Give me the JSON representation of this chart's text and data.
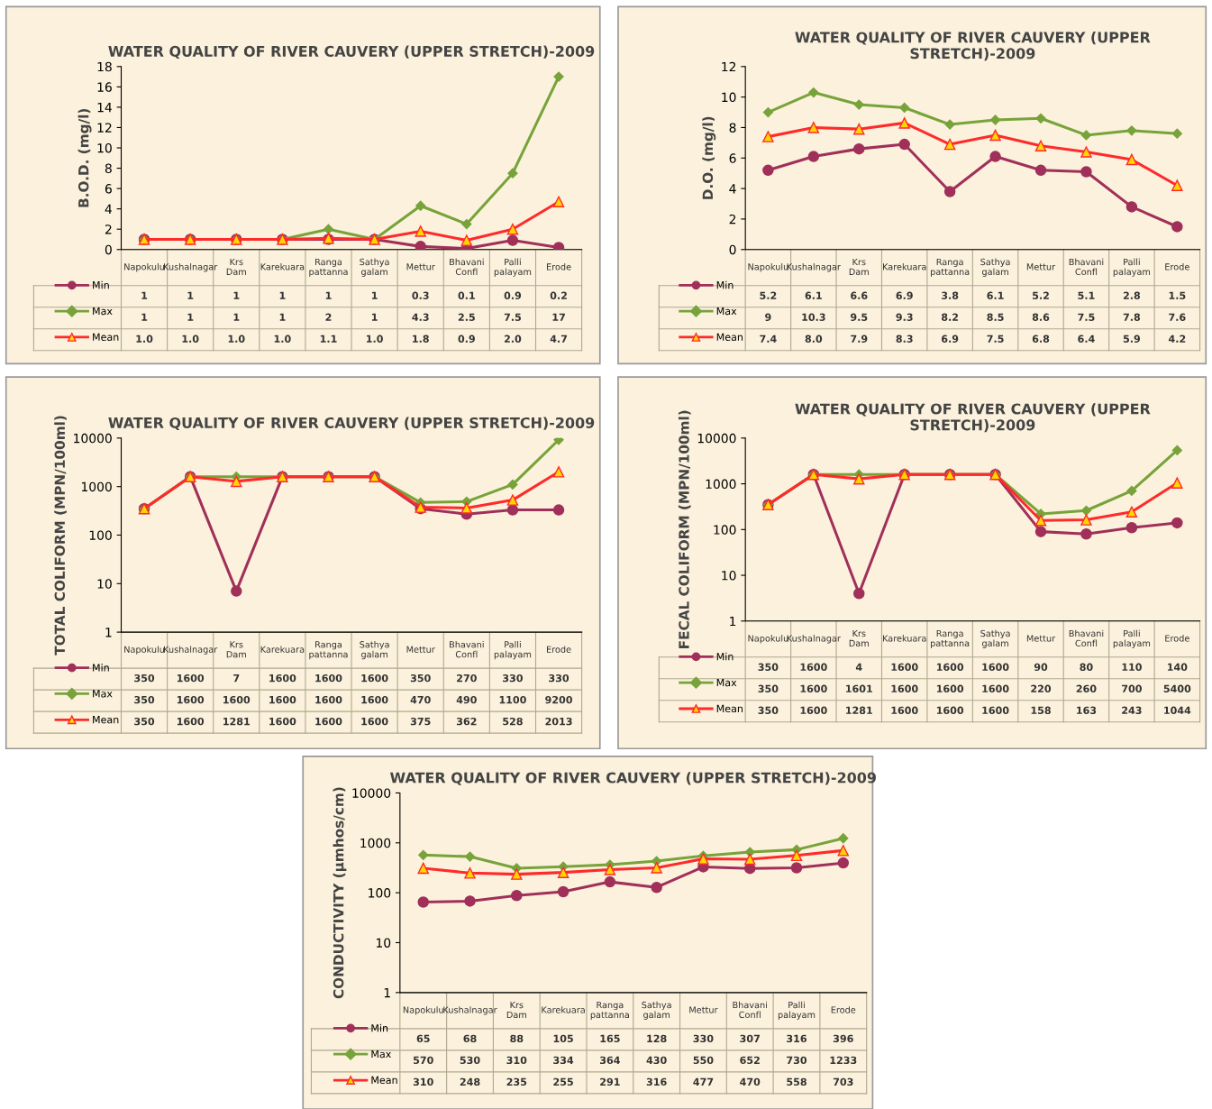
{
  "chart_data": [
    {
      "type": "line",
      "title": "WATER QUALITY OF RIVER CAUVERY (UPPER STRETCH)-2009",
      "ylabel": "B.O.D. (mg/l)",
      "categories": [
        "Napokulu",
        "Kushalnagar",
        "Krs Dam",
        "Karekuara",
        "Ranga pattanna",
        "Sathya galam",
        "Mettur",
        "Bhavani Confl",
        "Palli palayam",
        "Erode"
      ],
      "ylim": [
        0,
        18
      ],
      "yticks": [
        0,
        2,
        4,
        6,
        8,
        10,
        12,
        14,
        16,
        18
      ],
      "grid": false,
      "legend": "bottom left",
      "tick_labels": "y",
      "data_labels": true,
      "series": [
        {
          "name": "Min",
          "color": "#a0305a",
          "marker": "circle",
          "values": [
            1,
            1,
            1,
            1,
            1,
            1,
            0.3,
            0.1,
            0.9,
            0.2
          ],
          "value_labels": [
            "1",
            "1",
            "1",
            "1",
            "1",
            "1",
            "0.3",
            "0.1",
            "0.9",
            "0.2"
          ]
        },
        {
          "name": "Max",
          "color": "#77a33a",
          "marker": "diamond",
          "values": [
            1,
            1,
            1,
            1,
            2,
            1,
            4.3,
            2.5,
            7.5,
            17
          ],
          "value_labels": [
            "1",
            "1",
            "1",
            "1",
            "2",
            "1",
            "4.3",
            "2.5",
            "7.5",
            "17"
          ]
        },
        {
          "name": "Mean",
          "color": "#ff2a2a",
          "marker": "triangle",
          "values": [
            1.0,
            1.0,
            1.0,
            1.0,
            1.1,
            1.0,
            1.8,
            0.9,
            2.0,
            4.7
          ],
          "value_labels": [
            "1.0",
            "1.0",
            "1.0",
            "1.0",
            "1.1",
            "1.0",
            "1.8",
            "0.9",
            "2.0",
            "4.7"
          ]
        }
      ]
    },
    {
      "type": "line",
      "title": "WATER QUALITY OF RIVER CAUVERY (UPPER STRETCH)-2009",
      "ylabel": "D.O. (mg/l)",
      "categories": [
        "Napokulu",
        "Kushalnagar",
        "Krs Dam",
        "Karekuara",
        "Ranga pattanna",
        "Sathya galam",
        "Mettur",
        "Bhavani Confl",
        "Palli palayam",
        "Erode"
      ],
      "ylim": [
        0,
        12
      ],
      "yticks": [
        0,
        2,
        4,
        6,
        8,
        10,
        12
      ],
      "grid": false,
      "legend": "bottom left",
      "tick_labels": "y",
      "data_labels": true,
      "series": [
        {
          "name": "Min",
          "color": "#a0305a",
          "marker": "circle",
          "values": [
            5.2,
            6.1,
            6.6,
            6.9,
            3.8,
            6.1,
            5.2,
            5.1,
            2.8,
            1.5
          ],
          "value_labels": [
            "5.2",
            "6.1",
            "6.6",
            "6.9",
            "3.8",
            "6.1",
            "5.2",
            "5.1",
            "2.8",
            "1.5"
          ]
        },
        {
          "name": "Max",
          "color": "#77a33a",
          "marker": "diamond",
          "values": [
            9,
            10.3,
            9.5,
            9.3,
            8.2,
            8.5,
            8.6,
            7.5,
            7.8,
            7.6
          ],
          "value_labels": [
            "9",
            "10.3",
            "9.5",
            "9.3",
            "8.2",
            "8.5",
            "8.6",
            "7.5",
            "7.8",
            "7.6"
          ]
        },
        {
          "name": "Mean",
          "color": "#ff2a2a",
          "marker": "triangle",
          "values": [
            7.4,
            8.0,
            7.9,
            8.3,
            6.9,
            7.5,
            6.8,
            6.4,
            5.9,
            4.2
          ],
          "value_labels": [
            "7.4",
            "8.0",
            "7.9",
            "8.3",
            "6.9",
            "7.5",
            "6.8",
            "6.4",
            "5.9",
            "4.2"
          ]
        }
      ]
    },
    {
      "type": "line",
      "title": "WATER QUALITY OF RIVER CAUVERY (UPPER STRETCH)-2009",
      "ylabel": "TOTAL COLIFORM (MPN/100ml)",
      "categories": [
        "Napokulu",
        "Kushalnagar",
        "Krs Dam",
        "Karekuara",
        "Ranga pattanna",
        "Sathya galam",
        "Mettur",
        "Bhavani Confl",
        "Palli palayam",
        "Erode"
      ],
      "log": true,
      "ylim": [
        1,
        10000
      ],
      "yticks": [
        1,
        10,
        100,
        1000,
        10000
      ],
      "grid": false,
      "legend": "bottom left",
      "tick_labels": "y",
      "data_labels": true,
      "series": [
        {
          "name": "Min",
          "color": "#a0305a",
          "marker": "circle",
          "values": [
            350,
            1600,
            7,
            1600,
            1600,
            1600,
            350,
            270,
            330,
            330
          ],
          "value_labels": [
            "350",
            "1600",
            "7",
            "1600",
            "1600",
            "1600",
            "350",
            "270",
            "330",
            "330"
          ]
        },
        {
          "name": "Max",
          "color": "#77a33a",
          "marker": "diamond",
          "values": [
            350,
            1600,
            1600,
            1600,
            1600,
            1600,
            470,
            490,
            1100,
            9200
          ],
          "value_labels": [
            "350",
            "1600",
            "1600",
            "1600",
            "1600",
            "1600",
            "470",
            "490",
            "1100",
            "9200"
          ]
        },
        {
          "name": "Mean",
          "color": "#ff2a2a",
          "marker": "triangle",
          "values": [
            350,
            1600,
            1281,
            1600,
            1600,
            1600,
            375,
            362,
            528,
            2013
          ],
          "value_labels": [
            "350",
            "1600",
            "1281",
            "1600",
            "1600",
            "1600",
            "375",
            "362",
            "528",
            "2013"
          ]
        }
      ]
    },
    {
      "type": "line",
      "title": "WATER QUALITY OF RIVER CAUVERY (UPPER STRETCH)-2009",
      "ylabel": "FECAL COLIFORM (MPN/100ml)",
      "categories": [
        "Napokulu",
        "Kushalnagar",
        "Krs Dam",
        "Karekuara",
        "Ranga pattanna",
        "Sathya galam",
        "Mettur",
        "Bhavani Confl",
        "Palli palayam",
        "Erode"
      ],
      "log": true,
      "ylim": [
        1,
        10000
      ],
      "yticks": [
        1,
        10,
        100,
        1000,
        10000
      ],
      "grid": false,
      "legend": "bottom left",
      "tick_labels": "y",
      "data_labels": true,
      "series": [
        {
          "name": "Min",
          "color": "#a0305a",
          "marker": "circle",
          "values": [
            350,
            1600,
            4,
            1600,
            1600,
            1600,
            90,
            80,
            110,
            140
          ],
          "value_labels": [
            "350",
            "1600",
            "4",
            "1600",
            "1600",
            "1600",
            "90",
            "80",
            "110",
            "140"
          ]
        },
        {
          "name": "Max",
          "color": "#77a33a",
          "marker": "diamond",
          "values": [
            350,
            1600,
            1601,
            1600,
            1600,
            1600,
            220,
            260,
            700,
            5400
          ],
          "value_labels": [
            "350",
            "1600",
            "1601",
            "1600",
            "1600",
            "1600",
            "220",
            "260",
            "700",
            "5400"
          ]
        },
        {
          "name": "Mean",
          "color": "#ff2a2a",
          "marker": "triangle",
          "values": [
            350,
            1600,
            1281,
            1600,
            1600,
            1600,
            158,
            163,
            243,
            1044
          ],
          "value_labels": [
            "350",
            "1600",
            "1281",
            "1600",
            "1600",
            "1600",
            "158",
            "163",
            "243",
            "1044"
          ]
        }
      ]
    },
    {
      "type": "line",
      "title": "WATER QUALITY OF RIVER CAUVERY (UPPER STRETCH)-2009",
      "ylabel": "CONDUCTIVITY (µmhos/cm)",
      "categories": [
        "Napokulu",
        "Kushalnagar",
        "Krs Dam",
        "Karekuara",
        "Ranga pattanna",
        "Sathya galam",
        "Mettur",
        "Bhavani Confl",
        "Palli palayam",
        "Erode"
      ],
      "log": true,
      "ylim": [
        1,
        10000
      ],
      "yticks": [
        1,
        10,
        100,
        1000,
        10000
      ],
      "grid": false,
      "legend": "bottom left",
      "tick_labels": "y",
      "data_labels": true,
      "series": [
        {
          "name": "Min",
          "color": "#a0305a",
          "marker": "circle",
          "values": [
            65,
            68,
            88,
            105,
            165,
            128,
            330,
            307,
            316,
            396
          ],
          "value_labels": [
            "65",
            "68",
            "88",
            "105",
            "165",
            "128",
            "330",
            "307",
            "316",
            "396"
          ]
        },
        {
          "name": "Max",
          "color": "#77a33a",
          "marker": "diamond",
          "values": [
            570,
            530,
            310,
            334,
            364,
            430,
            550,
            652,
            730,
            1233
          ],
          "value_labels": [
            "570",
            "530",
            "310",
            "334",
            "364",
            "430",
            "550",
            "652",
            "730",
            "1233"
          ]
        },
        {
          "name": "Mean",
          "color": "#ff2a2a",
          "marker": "triangle",
          "values": [
            310,
            248,
            235,
            255,
            291,
            316,
            477,
            470,
            558,
            703
          ],
          "value_labels": [
            "310",
            "248",
            "235",
            "255",
            "291",
            "316",
            "477",
            "470",
            "558",
            "703"
          ]
        }
      ]
    }
  ]
}
